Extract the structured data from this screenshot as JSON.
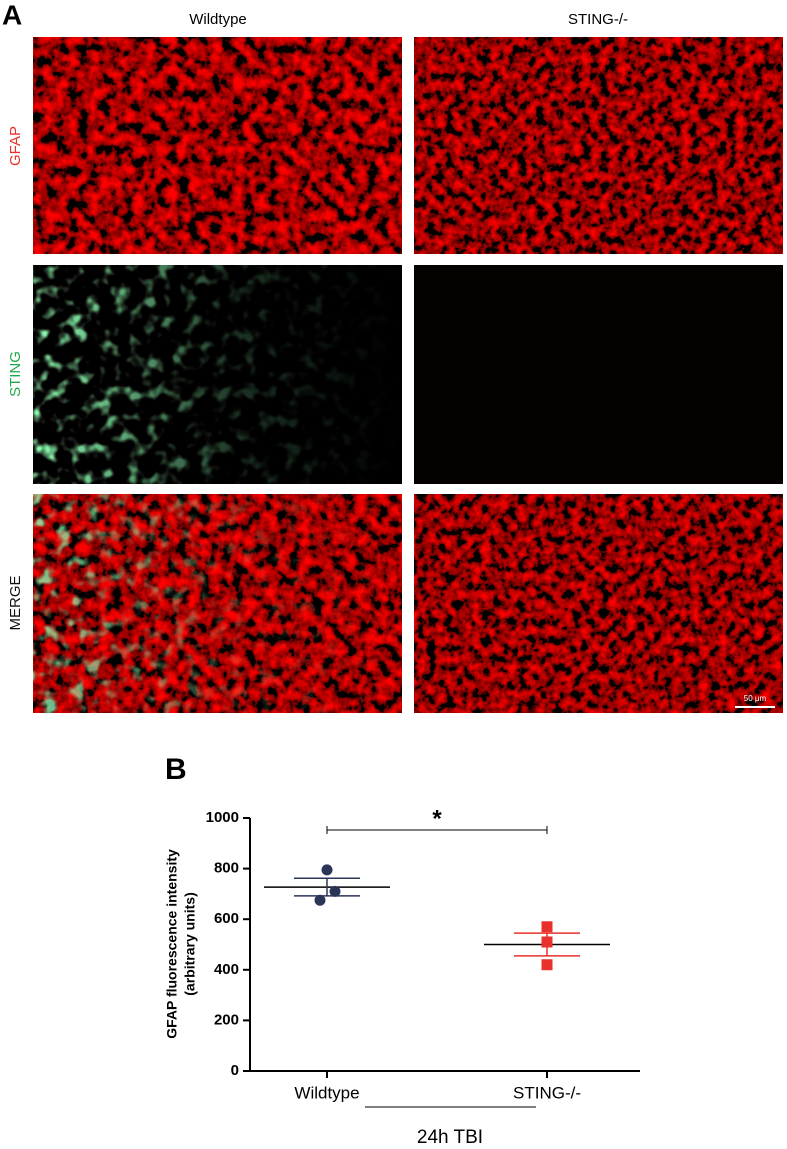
{
  "panel_a": {
    "label": "A",
    "columns": [
      "Wildtype",
      "STING-/-"
    ],
    "rows": [
      "GFAP",
      "STING",
      "MERGE"
    ],
    "scale_bar": "50 μm"
  },
  "chart_data": {
    "type": "scatter",
    "panel_label": "B",
    "ylabel": [
      "GFAP fluorescence intensity",
      "(arbitrary units)"
    ],
    "categories": [
      "Wildtype",
      "STING-/-"
    ],
    "points": [
      [
        795,
        710,
        675
      ],
      [
        570,
        510,
        420
      ]
    ],
    "colors": [
      "#2b3558",
      "#e8312c"
    ],
    "markers": [
      "circle",
      "square"
    ],
    "means": [
      727,
      500
    ],
    "sem": [
      35,
      45
    ],
    "ylim": [
      0,
      1000
    ],
    "yticks": [
      0,
      200,
      400,
      600,
      800,
      1000
    ],
    "annotation": "*",
    "group_label": "24h TBI"
  }
}
